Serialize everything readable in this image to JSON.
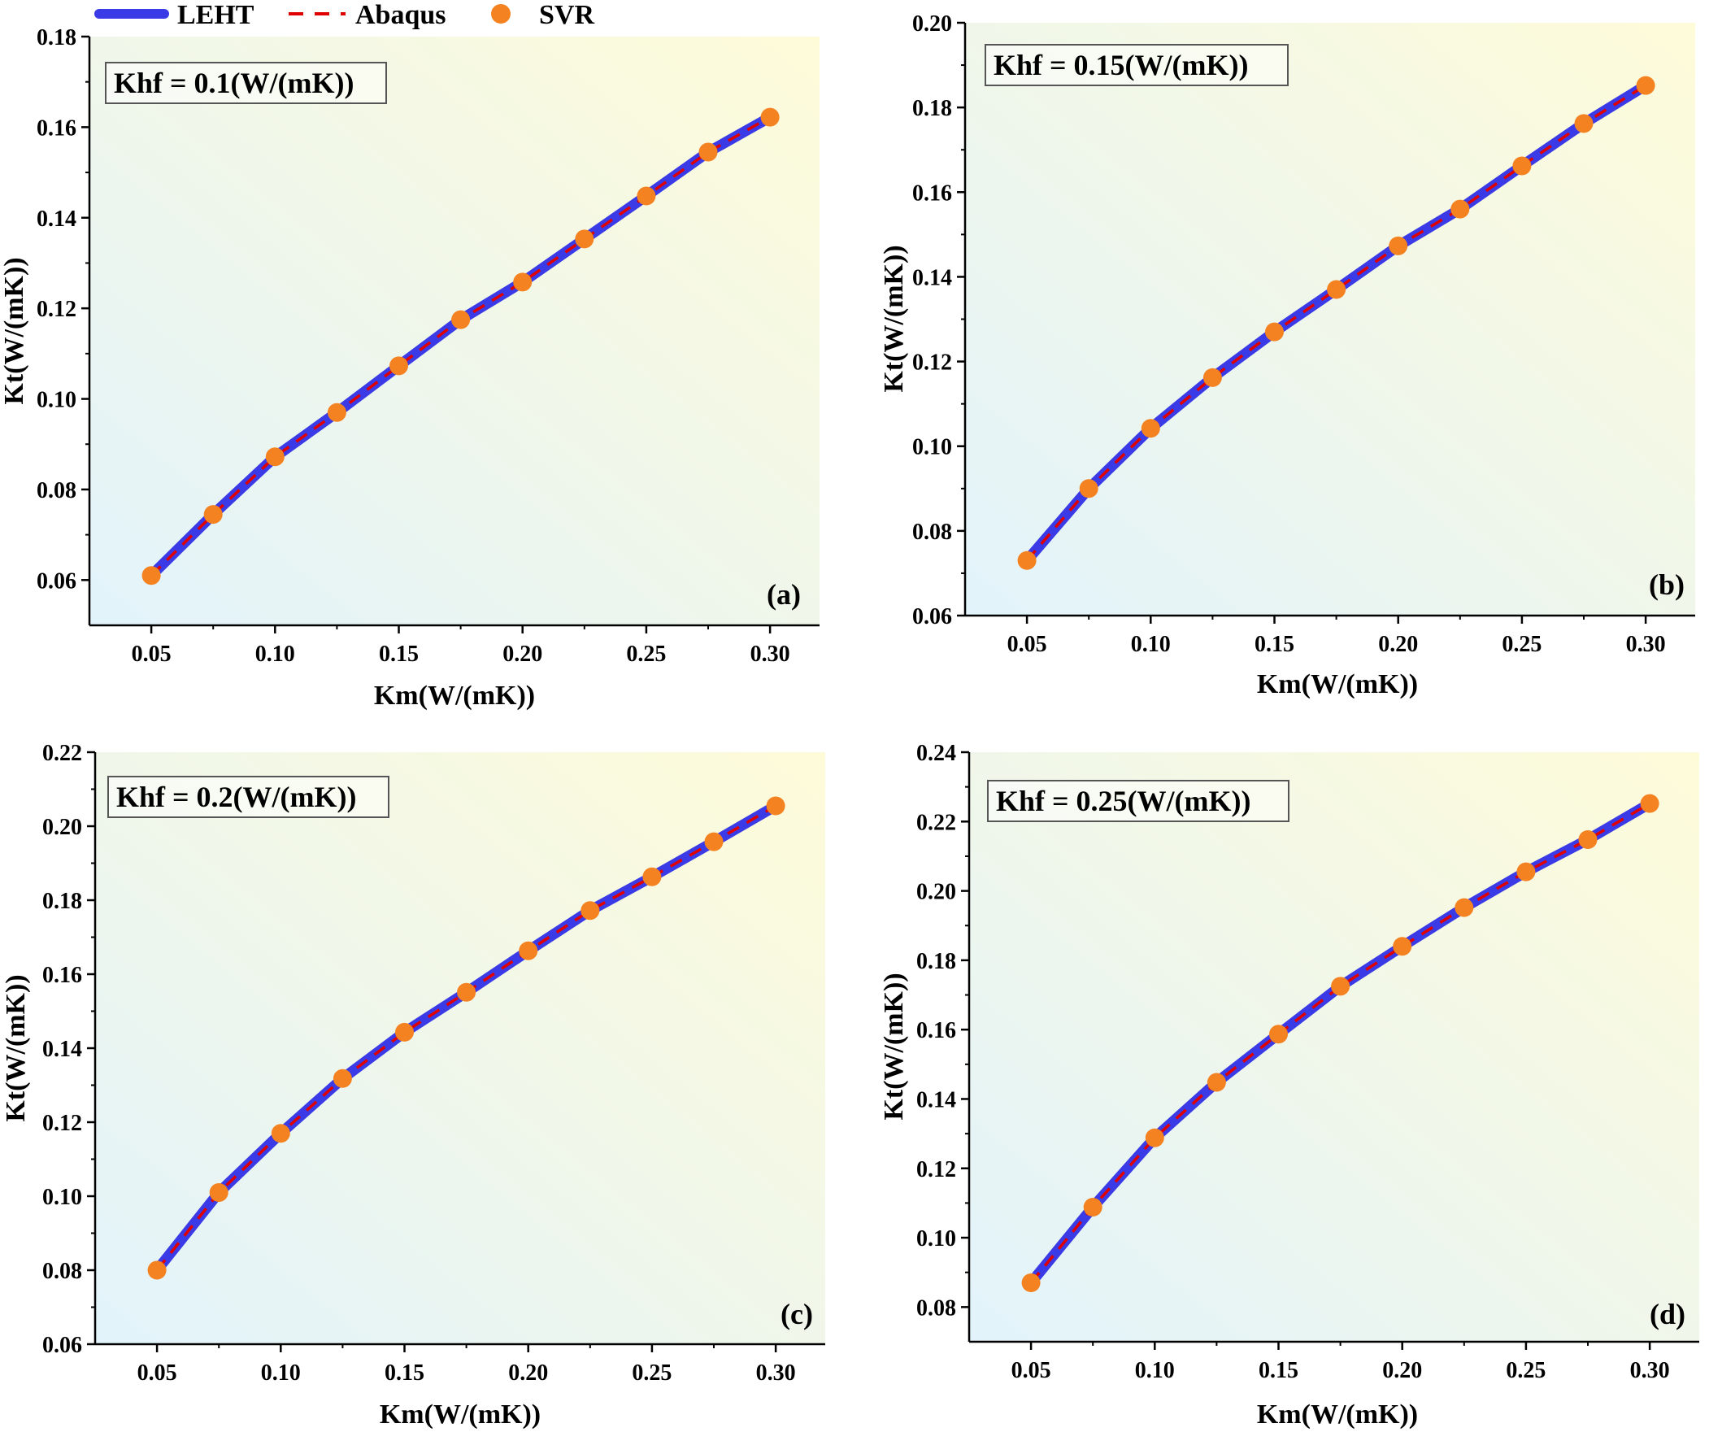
{
  "legend": {
    "items": [
      {
        "label": "LEHT",
        "style": "solid",
        "color": "#3a3ae6"
      },
      {
        "label": "Abaqus",
        "style": "dashed",
        "color": "#e00000"
      },
      {
        "label": "SVR",
        "style": "marker",
        "color": "#f58220"
      }
    ]
  },
  "colors": {
    "leht": "#3a3ae6",
    "abaqus": "#e00000",
    "svr": "#f58220",
    "bg_start": "#e2f3fb",
    "bg_end": "#fefbd9"
  },
  "chart_data": [
    {
      "type": "line",
      "panel": "(a)",
      "annotation": "Khf = 0.1(W/(mK))",
      "xlabel": "Km(W/(mK))",
      "ylabel": "Kt(W/(mK))",
      "xlim": [
        0.025,
        0.32
      ],
      "ylim": [
        0.05,
        0.18
      ],
      "xticks": [
        0.05,
        0.1,
        0.15,
        0.2,
        0.25,
        0.3
      ],
      "yticks": [
        0.06,
        0.08,
        0.1,
        0.12,
        0.14,
        0.16,
        0.18
      ],
      "x": [
        0.05,
        0.075,
        0.1,
        0.125,
        0.15,
        0.175,
        0.2,
        0.225,
        0.25,
        0.275,
        0.3
      ],
      "series": [
        {
          "name": "LEHT",
          "values": [
            0.061,
            0.0745,
            0.0872,
            0.097,
            0.1073,
            0.1175,
            0.1258,
            0.1353,
            0.1448,
            0.1545,
            0.1622
          ]
        },
        {
          "name": "Abaqus",
          "values": [
            0.061,
            0.0745,
            0.0872,
            0.097,
            0.1073,
            0.1175,
            0.1258,
            0.1353,
            0.1448,
            0.1545,
            0.1622
          ]
        },
        {
          "name": "SVR",
          "values": [
            0.061,
            0.0745,
            0.0872,
            0.097,
            0.1073,
            0.1175,
            0.1258,
            0.1353,
            0.1448,
            0.1545,
            0.1622
          ]
        }
      ]
    },
    {
      "type": "line",
      "panel": "(b)",
      "annotation": "Khf = 0.15(W/(mK))",
      "xlabel": "Km(W/(mK))",
      "ylabel": "Kt(W/(mK))",
      "xlim": [
        0.025,
        0.32
      ],
      "ylim": [
        0.06,
        0.2
      ],
      "xticks": [
        0.05,
        0.1,
        0.15,
        0.2,
        0.25,
        0.3
      ],
      "yticks": [
        0.06,
        0.08,
        0.1,
        0.12,
        0.14,
        0.16,
        0.18,
        0.2
      ],
      "x": [
        0.05,
        0.075,
        0.1,
        0.125,
        0.15,
        0.175,
        0.2,
        0.225,
        0.25,
        0.275,
        0.3
      ],
      "series": [
        {
          "name": "LEHT",
          "values": [
            0.073,
            0.09,
            0.1042,
            0.1162,
            0.127,
            0.137,
            0.1473,
            0.156,
            0.1662,
            0.1762,
            0.1852
          ]
        },
        {
          "name": "Abaqus",
          "values": [
            0.073,
            0.09,
            0.1042,
            0.1162,
            0.127,
            0.137,
            0.1473,
            0.156,
            0.1662,
            0.1762,
            0.1852
          ]
        },
        {
          "name": "SVR",
          "values": [
            0.073,
            0.09,
            0.1042,
            0.1162,
            0.127,
            0.137,
            0.1473,
            0.156,
            0.1662,
            0.1762,
            0.1852
          ]
        }
      ]
    },
    {
      "type": "line",
      "panel": "(c)",
      "annotation": "Khf = 0.2(W/(mK))",
      "xlabel": "Km(W/(mK))",
      "ylabel": "Kt(W/(mK))",
      "xlim": [
        0.025,
        0.32
      ],
      "ylim": [
        0.06,
        0.22
      ],
      "xticks": [
        0.05,
        0.1,
        0.15,
        0.2,
        0.25,
        0.3
      ],
      "yticks": [
        0.06,
        0.08,
        0.1,
        0.12,
        0.14,
        0.16,
        0.18,
        0.2,
        0.22
      ],
      "x": [
        0.05,
        0.075,
        0.1,
        0.125,
        0.15,
        0.175,
        0.2,
        0.225,
        0.25,
        0.275,
        0.3
      ],
      "series": [
        {
          "name": "LEHT",
          "values": [
            0.08,
            0.101,
            0.117,
            0.1318,
            0.1443,
            0.1551,
            0.1663,
            0.1772,
            0.1863,
            0.1958,
            0.2055
          ]
        },
        {
          "name": "Abaqus",
          "values": [
            0.08,
            0.101,
            0.117,
            0.1318,
            0.1443,
            0.1551,
            0.1663,
            0.1772,
            0.1863,
            0.1958,
            0.2055
          ]
        },
        {
          "name": "SVR",
          "values": [
            0.08,
            0.101,
            0.117,
            0.1318,
            0.1443,
            0.1551,
            0.1663,
            0.1772,
            0.1863,
            0.1958,
            0.2055
          ]
        }
      ]
    },
    {
      "type": "line",
      "panel": "(d)",
      "annotation": "Khf = 0.25(W/(mK))",
      "xlabel": "Km(W/(mK))",
      "ylabel": "Kt(W/(mK))",
      "xlim": [
        0.025,
        0.32
      ],
      "ylim": [
        0.07,
        0.24
      ],
      "xticks": [
        0.05,
        0.1,
        0.15,
        0.2,
        0.25,
        0.3
      ],
      "yticks": [
        0.08,
        0.1,
        0.12,
        0.14,
        0.16,
        0.18,
        0.2,
        0.22,
        0.24
      ],
      "x": [
        0.05,
        0.075,
        0.1,
        0.125,
        0.15,
        0.175,
        0.2,
        0.225,
        0.25,
        0.275,
        0.3
      ],
      "series": [
        {
          "name": "LEHT",
          "values": [
            0.087,
            0.1088,
            0.1288,
            0.1448,
            0.1587,
            0.1725,
            0.184,
            0.1952,
            0.2055,
            0.2148,
            0.2252
          ]
        },
        {
          "name": "Abaqus",
          "values": [
            0.087,
            0.1088,
            0.1288,
            0.1448,
            0.1587,
            0.1725,
            0.184,
            0.1952,
            0.2055,
            0.2148,
            0.2252
          ]
        },
        {
          "name": "SVR",
          "values": [
            0.087,
            0.1088,
            0.1288,
            0.1448,
            0.1587,
            0.1725,
            0.184,
            0.1952,
            0.2055,
            0.2148,
            0.2252
          ]
        }
      ]
    }
  ]
}
